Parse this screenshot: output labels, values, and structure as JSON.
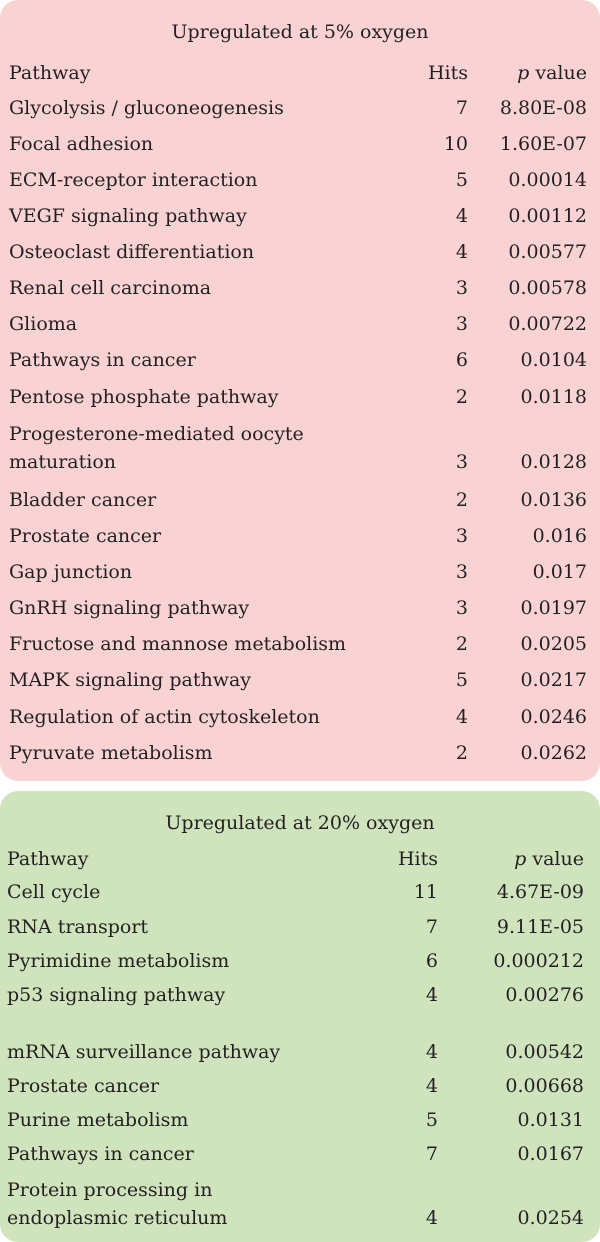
{
  "tables": [
    {
      "title": "Upregulated at 5% oxygen",
      "headers": {
        "pathway": "Pathway",
        "hits": "Hits",
        "p_italic": "p",
        "p_rest": " value"
      },
      "rows": [
        {
          "pathway": [
            "Glycolysis / gluconeogenesis"
          ],
          "hits": "7",
          "p": "8.80E-08"
        },
        {
          "pathway": [
            "Focal adhesion"
          ],
          "hits": "10",
          "p": "1.60E-07"
        },
        {
          "pathway": [
            "ECM-receptor interaction"
          ],
          "hits": "5",
          "p": "0.00014"
        },
        {
          "pathway": [
            "VEGF signaling pathway"
          ],
          "hits": "4",
          "p": "0.00112"
        },
        {
          "pathway": [
            "Osteoclast differentiation"
          ],
          "hits": "4",
          "p": "0.00577"
        },
        {
          "pathway": [
            "Renal cell carcinoma"
          ],
          "hits": "3",
          "p": "0.00578"
        },
        {
          "pathway": [
            "Glioma"
          ],
          "hits": "3",
          "p": "0.00722"
        },
        {
          "pathway": [
            "Pathways in cancer"
          ],
          "hits": "6",
          "p": "0.0104"
        },
        {
          "pathway": [
            "Pentose phosphate pathway"
          ],
          "hits": "2",
          "p": "0.0118"
        },
        {
          "pathway": [
            "Progesterone-mediated oocyte",
            "maturation"
          ],
          "hits": "3",
          "p": "0.0128"
        },
        {
          "pathway": [
            "Bladder cancer"
          ],
          "hits": "2",
          "p": "0.0136"
        },
        {
          "pathway": [
            "Prostate cancer"
          ],
          "hits": "3",
          "p": "0.016"
        },
        {
          "pathway": [
            "Gap junction"
          ],
          "hits": "3",
          "p": "0.017"
        },
        {
          "pathway": [
            "GnRH signaling pathway"
          ],
          "hits": "3",
          "p": "0.0197"
        },
        {
          "pathway": [
            "Fructose and mannose metabolism"
          ],
          "hits": "2",
          "p": "0.0205"
        },
        {
          "pathway": [
            "MAPK signaling pathway"
          ],
          "hits": "5",
          "p": "0.0217"
        },
        {
          "pathway": [
            "Regulation of actin cytoskeleton"
          ],
          "hits": "4",
          "p": "0.0246"
        },
        {
          "pathway": [
            "Pyruvate metabolism"
          ],
          "hits": "2",
          "p": "0.0262"
        }
      ]
    },
    {
      "title": "Upregulated at 20% oxygen",
      "headers": {
        "pathway": "Pathway",
        "hits": "Hits",
        "p_italic": "p",
        "p_rest": " value"
      },
      "rows": [
        {
          "pathway": [
            "Cell cycle"
          ],
          "hits": "11",
          "p": "4.67E-09"
        },
        {
          "pathway": [
            "RNA transport"
          ],
          "hits": "7",
          "p": "9.11E-05"
        },
        {
          "pathway": [
            "Pyrimidine metabolism"
          ],
          "hits": "6",
          "p": "0.000212"
        },
        {
          "pathway": [
            "p53 signaling  pathway"
          ],
          "hits": "4",
          "p": "0.00276"
        },
        {
          "pathway": [
            "mRNA surveillance pathway"
          ],
          "hits": "4",
          "p": "0.00542"
        },
        {
          "pathway": [
            "Prostate cancer"
          ],
          "hits": "4",
          "p": "0.00668"
        },
        {
          "pathway": [
            "Purine metabolism"
          ],
          "hits": "5",
          "p": "0.0131"
        },
        {
          "pathway": [
            "Pathways in cancer"
          ],
          "hits": "7",
          "p": "0.0167"
        },
        {
          "pathway": [
            "Protein processing in",
            "endoplasmic reticulum"
          ],
          "hits": "4",
          "p": "0.0254"
        }
      ]
    }
  ]
}
